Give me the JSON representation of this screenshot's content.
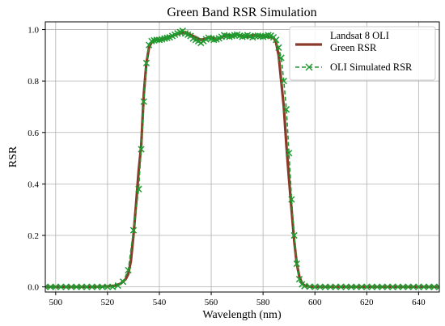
{
  "chart_data": {
    "type": "line",
    "title": "Green Band RSR Simulation",
    "xlabel": "Wavelength (nm)",
    "ylabel": "RSR",
    "xlim": [
      496,
      648
    ],
    "ylim": [
      -0.02,
      1.03
    ],
    "x_ticks": [
      500,
      520,
      540,
      560,
      580,
      600,
      620,
      640
    ],
    "y_ticks": [
      0.0,
      0.2,
      0.4,
      0.6,
      0.8,
      1.0
    ],
    "y_tick_labels": [
      "0.0",
      "0.2",
      "0.4",
      "0.6",
      "0.8",
      "1.0"
    ],
    "grid": true,
    "legend_position": "top-right",
    "series": [
      {
        "name": "Landsat 8 OLI\nGreen RSR",
        "style": "solid",
        "color": "#8b3a2a",
        "x": [
          496,
          500,
          505,
          510,
          515,
          520,
          523,
          525,
          527,
          528,
          529,
          530,
          531,
          532,
          533,
          534,
          535,
          536,
          537,
          538,
          540,
          542,
          544,
          546,
          548,
          550,
          552,
          554,
          556,
          558,
          560,
          562,
          564,
          566,
          568,
          570,
          572,
          574,
          576,
          578,
          580,
          582,
          584,
          585,
          586,
          587,
          588,
          589,
          590,
          591,
          592,
          593,
          594,
          595,
          596,
          598,
          600,
          610,
          620,
          630,
          640,
          648
        ],
        "y": [
          0,
          0,
          0,
          0,
          0,
          0.002,
          0.005,
          0.012,
          0.03,
          0.05,
          0.1,
          0.2,
          0.32,
          0.45,
          0.55,
          0.75,
          0.87,
          0.93,
          0.95,
          0.96,
          0.96,
          0.965,
          0.97,
          0.98,
          0.985,
          0.99,
          0.98,
          0.97,
          0.96,
          0.965,
          0.97,
          0.96,
          0.97,
          0.98,
          0.975,
          0.98,
          0.975,
          0.97,
          0.98,
          0.975,
          0.975,
          0.97,
          0.97,
          0.95,
          0.9,
          0.8,
          0.7,
          0.55,
          0.42,
          0.3,
          0.18,
          0.09,
          0.04,
          0.015,
          0.005,
          0.001,
          0,
          0,
          0,
          0,
          0,
          0
        ]
      },
      {
        "name": "OLI Simulated RSR",
        "style": "dashed-x",
        "color": "#1f9a2e",
        "x": [
          496,
          498,
          500,
          502,
          504,
          506,
          508,
          510,
          512,
          514,
          516,
          518,
          520,
          522,
          524,
          526,
          528,
          530,
          532,
          533,
          534,
          535,
          536,
          537,
          538,
          539,
          540,
          541,
          542,
          543,
          544,
          545,
          546,
          547,
          548,
          549,
          550,
          551,
          552,
          553,
          554,
          555,
          556,
          557,
          558,
          559,
          560,
          561,
          562,
          563,
          564,
          565,
          566,
          567,
          568,
          569,
          570,
          571,
          572,
          573,
          574,
          575,
          576,
          577,
          578,
          579,
          580,
          581,
          582,
          583,
          584,
          585,
          586,
          587,
          588,
          589,
          590,
          591,
          592,
          593,
          594,
          595,
          596,
          598,
          600,
          602,
          604,
          606,
          608,
          610,
          612,
          614,
          616,
          618,
          620,
          622,
          624,
          626,
          628,
          630,
          632,
          634,
          636,
          638,
          640,
          642,
          644,
          646,
          648
        ],
        "y": [
          0,
          0,
          0,
          0,
          0,
          0,
          0,
          0,
          0,
          0,
          0,
          0,
          0,
          0,
          0.005,
          0.02,
          0.065,
          0.22,
          0.38,
          0.535,
          0.72,
          0.87,
          0.94,
          0.955,
          0.958,
          0.96,
          0.96,
          0.962,
          0.965,
          0.968,
          0.97,
          0.975,
          0.98,
          0.985,
          0.99,
          0.995,
          0.985,
          0.98,
          0.975,
          0.965,
          0.96,
          0.955,
          0.948,
          0.955,
          0.962,
          0.968,
          0.965,
          0.96,
          0.962,
          0.966,
          0.972,
          0.978,
          0.975,
          0.972,
          0.975,
          0.978,
          0.98,
          0.976,
          0.972,
          0.975,
          0.978,
          0.974,
          0.97,
          0.975,
          0.976,
          0.974,
          0.972,
          0.975,
          0.978,
          0.976,
          0.97,
          0.96,
          0.93,
          0.89,
          0.8,
          0.69,
          0.52,
          0.34,
          0.2,
          0.09,
          0.03,
          0.01,
          0.003,
          0.001,
          0,
          0,
          0,
          0,
          0,
          0,
          0,
          0,
          0,
          0,
          0,
          0,
          0,
          0,
          0,
          0,
          0,
          0,
          0,
          0,
          0,
          0,
          0,
          0,
          0
        ]
      }
    ]
  }
}
